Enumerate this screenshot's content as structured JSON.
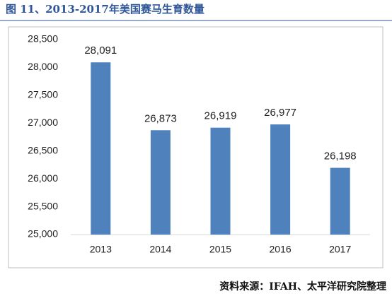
{
  "chart_data": {
    "type": "bar",
    "title": "图 11、2013-2017年美国赛马生育数量",
    "source": "资料来源：IFAH、太平洋研究院整理",
    "categories": [
      "2013",
      "2014",
      "2015",
      "2016",
      "2017"
    ],
    "values": [
      28091,
      26873,
      26919,
      26977,
      26198
    ],
    "value_labels": [
      "28,091",
      "26,873",
      "26,919",
      "26,977",
      "26,198"
    ],
    "color": "#4f81bd",
    "ylim": [
      25000,
      28500
    ],
    "yticks": [
      {
        "value": 25000,
        "label": "25,000"
      },
      {
        "value": 25500,
        "label": "25,500"
      },
      {
        "value": 26000,
        "label": "26,000"
      },
      {
        "value": 26500,
        "label": "26,500"
      },
      {
        "value": 27000,
        "label": "27,000"
      },
      {
        "value": 27500,
        "label": "27,500"
      },
      {
        "value": 28000,
        "label": "28,000"
      },
      {
        "value": 28500,
        "label": "28,500"
      }
    ],
    "grid": false
  }
}
